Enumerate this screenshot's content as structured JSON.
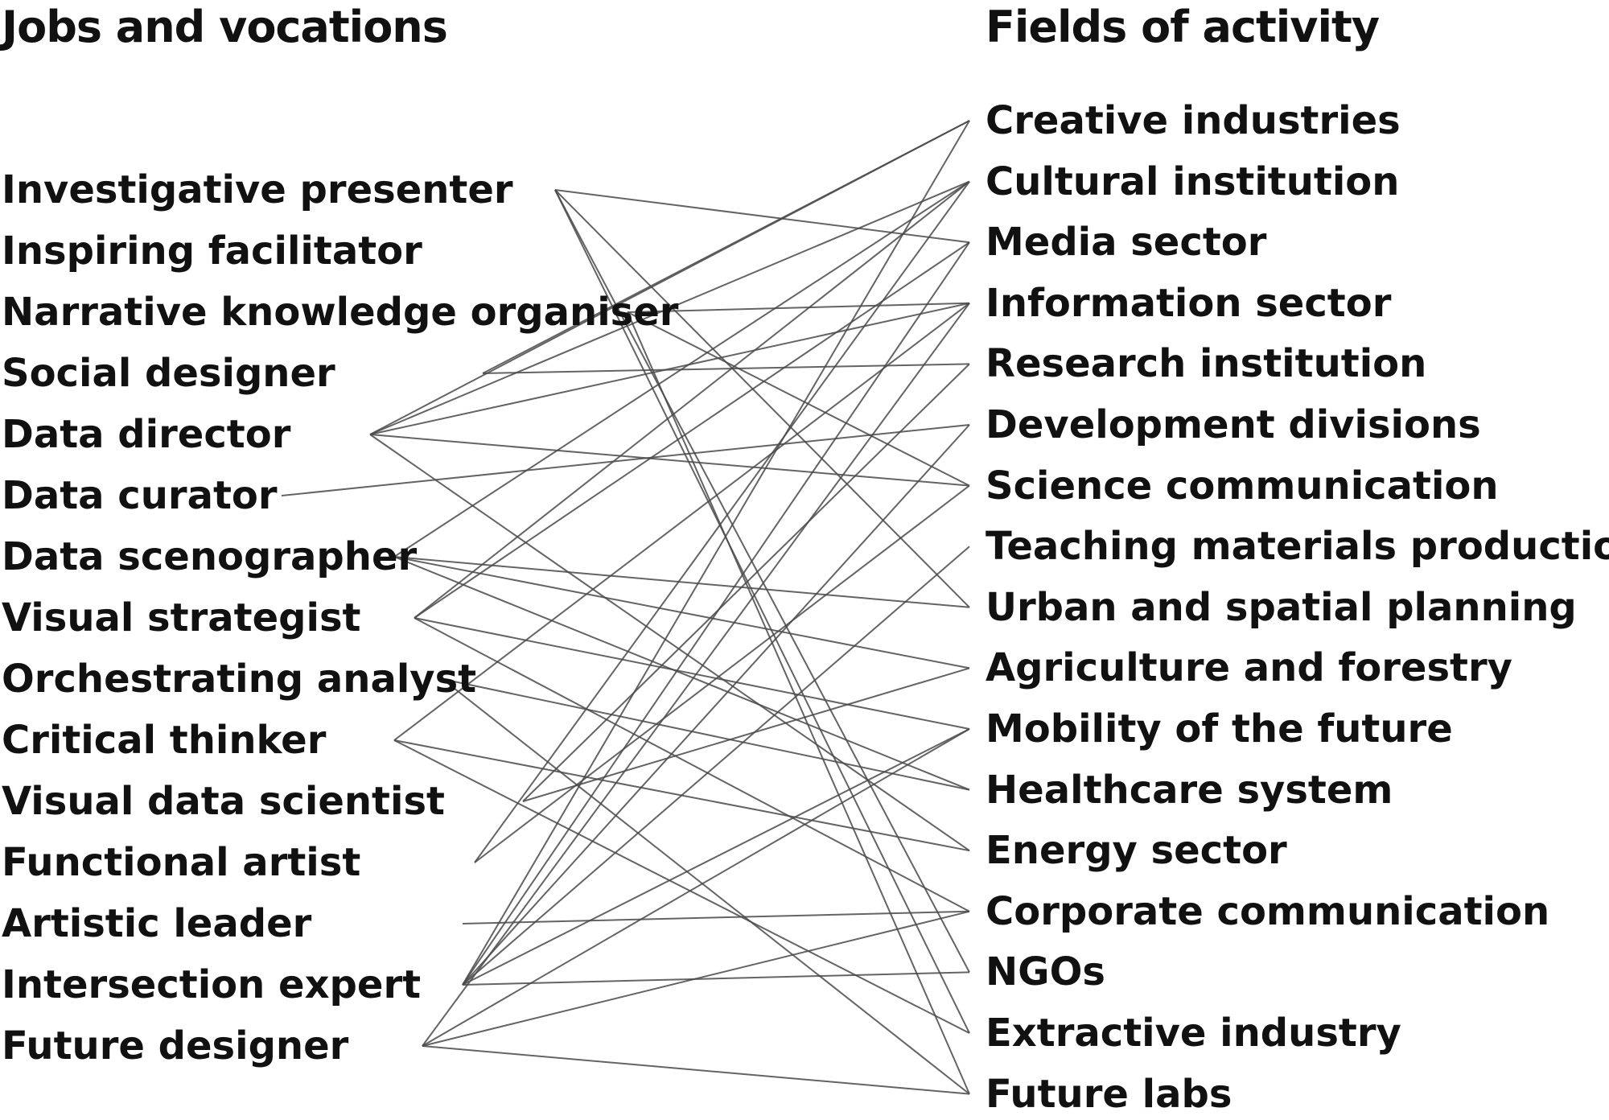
{
  "headings": {
    "left": "Jobs and vocations",
    "right": "Fields of activity"
  },
  "jobs": [
    "Investigative presenter",
    "Inspiring facilitator",
    "Narrative knowledge organiser",
    "Social designer",
    "Data director",
    "Data curator",
    "Data scenographer",
    "Visual strategist",
    "Orchestrating analyst",
    "Critical thinker",
    "Visual data scientist",
    "Functional artist",
    "Artistic leader",
    "Intersection expert",
    "Future designer"
  ],
  "fields": [
    "Creative industries",
    "Cultural institution",
    "Media sector",
    "Information sector",
    "Research institution",
    "Development divisions",
    "Science communication",
    "Teaching materials production",
    "Urban and spatial planning",
    "Agriculture and forestry",
    "Mobility of the future",
    "Healthcare system",
    "Energy sector",
    "Corporate communication",
    "NGOs",
    "Extractive industry",
    "Future labs"
  ],
  "connections": [
    [
      0,
      2
    ],
    [
      0,
      8
    ],
    [
      0,
      14
    ],
    [
      0,
      15
    ],
    [
      2,
      3
    ],
    [
      2,
      6
    ],
    [
      2,
      16
    ],
    [
      3,
      0
    ],
    [
      3,
      4
    ],
    [
      4,
      0
    ],
    [
      4,
      1
    ],
    [
      4,
      3
    ],
    [
      4,
      6
    ],
    [
      4,
      12
    ],
    [
      5,
      5
    ],
    [
      6,
      1
    ],
    [
      6,
      8
    ],
    [
      6,
      9
    ],
    [
      6,
      11
    ],
    [
      7,
      1
    ],
    [
      7,
      2
    ],
    [
      7,
      10
    ],
    [
      7,
      13
    ],
    [
      8,
      11
    ],
    [
      8,
      16
    ],
    [
      9,
      3
    ],
    [
      9,
      12
    ],
    [
      9,
      15
    ],
    [
      10,
      4
    ],
    [
      10,
      9
    ],
    [
      11,
      1
    ],
    [
      11,
      6
    ],
    [
      12,
      13
    ],
    [
      13,
      0
    ],
    [
      13,
      2
    ],
    [
      13,
      5
    ],
    [
      13,
      7
    ],
    [
      13,
      10
    ],
    [
      13,
      14
    ],
    [
      14,
      3
    ],
    [
      14,
      10
    ],
    [
      14,
      13
    ],
    [
      14,
      16
    ]
  ]
}
